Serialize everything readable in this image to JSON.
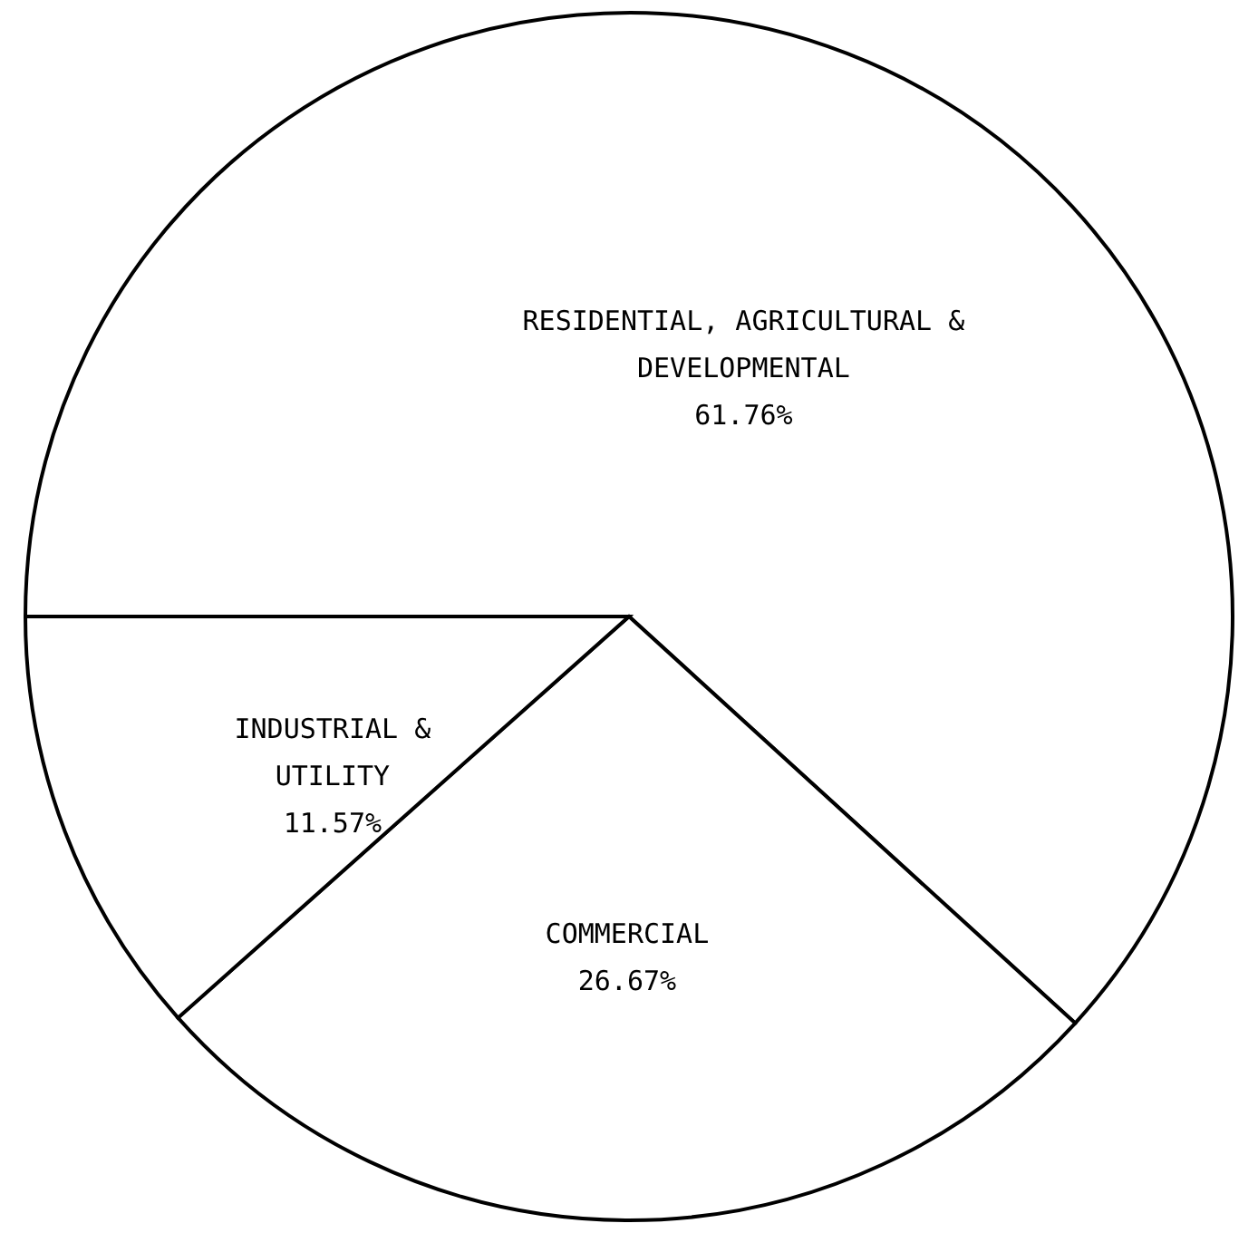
{
  "chart_data": {
    "type": "pie",
    "categories": [
      "RESIDENTIAL, AGRICULTURAL & DEVELOPMENTAL",
      "COMMERCIAL",
      "INDUSTRIAL & UTILITY"
    ],
    "values": [
      61.76,
      26.67,
      11.57
    ],
    "value_labels": [
      "61.76%",
      "26.67%",
      "11.57%"
    ],
    "colors": [
      "#ffffff",
      "#ffffff",
      "#ffffff"
    ]
  }
}
